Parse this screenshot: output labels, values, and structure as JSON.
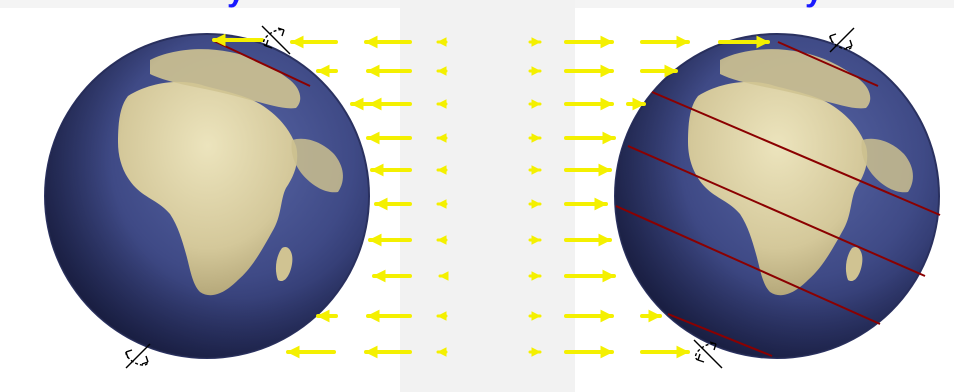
{
  "title_fragments": {
    "left": "y",
    "right": "y"
  },
  "colors": {
    "sunlight_arrow": "#f4f000",
    "earth_ocean": "#3f4a86",
    "earth_ocean_dark": "#1d2350",
    "continent": "#d8cc9c",
    "latitude_line": "#8b0000",
    "title_text": "#1a1aff",
    "rotation_marker": "#000000"
  },
  "diagram": {
    "description_elements": [
      "sunlight-arrows",
      "left-earth-globe",
      "right-earth-globe",
      "rotation-markers",
      "latitude-lines"
    ]
  }
}
